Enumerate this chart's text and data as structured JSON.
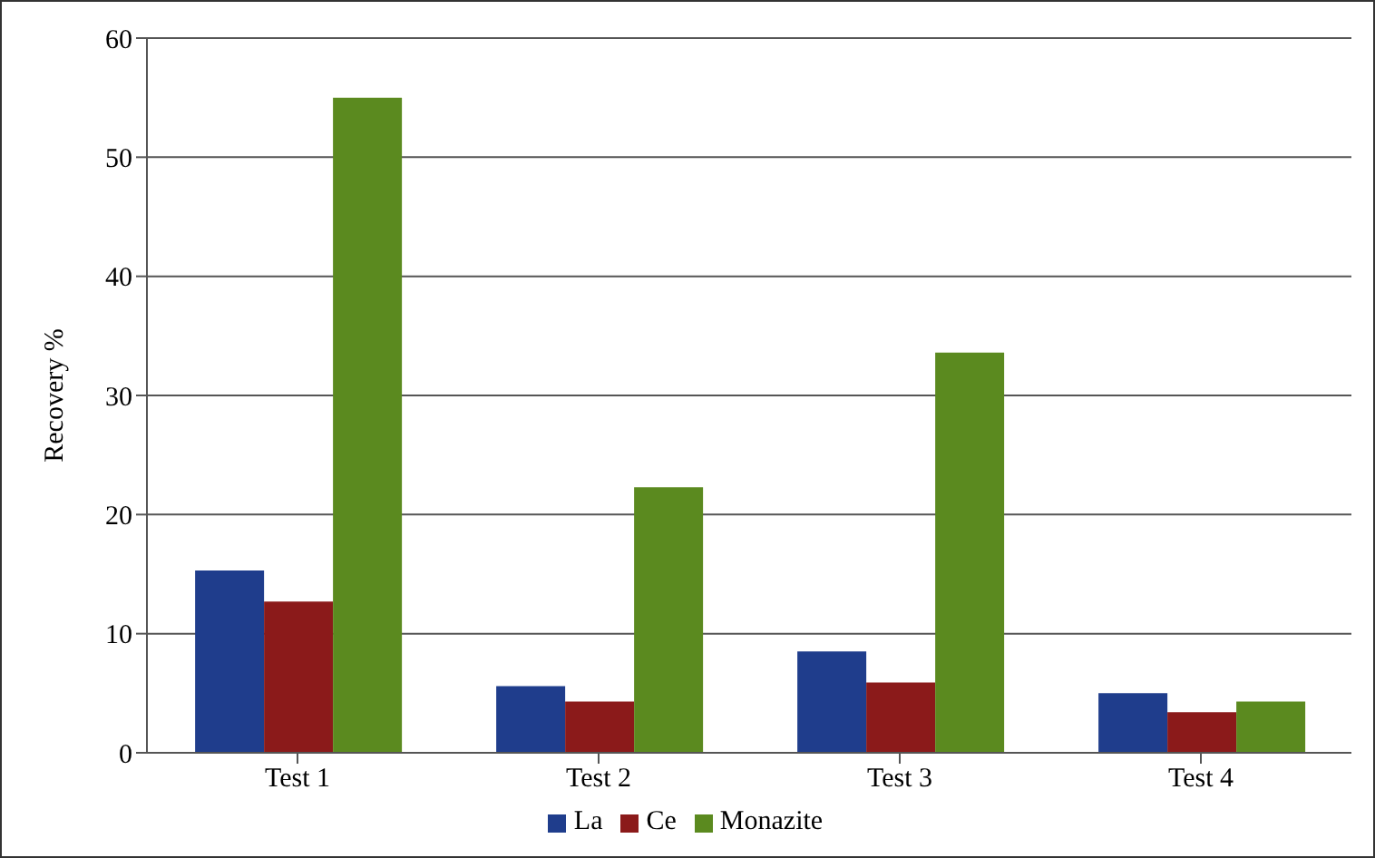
{
  "chart_data": {
    "type": "bar",
    "ylabel": "Recovery %",
    "categories": [
      "Test 1",
      "Test 2",
      "Test 3",
      "Test 4"
    ],
    "series": [
      {
        "name": "La",
        "color": "#1f3d8c",
        "values": [
          15.3,
          5.6,
          8.5,
          5.0
        ]
      },
      {
        "name": "Ce",
        "color": "#8b1a1a",
        "values": [
          12.7,
          4.3,
          5.9,
          3.4
        ]
      },
      {
        "name": "Monazite",
        "color": "#5b8a1f",
        "values": [
          55,
          22.3,
          33.6,
          4.3
        ]
      }
    ],
    "ylim": [
      0,
      60
    ],
    "yticks": [
      0,
      10,
      20,
      30,
      40,
      50,
      60
    ],
    "grid": "y",
    "legend": "bottom"
  }
}
